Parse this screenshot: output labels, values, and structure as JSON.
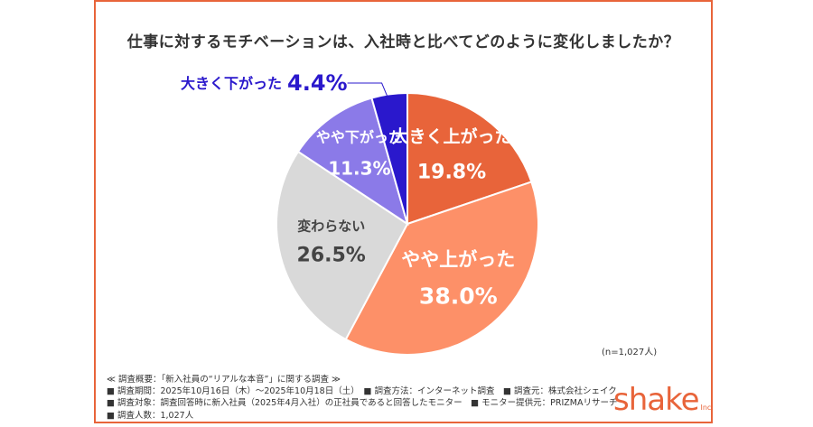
{
  "title": "仕事に対するモチベーションは、入社時と比べてどのように変化しましたか？",
  "chart_data": {
    "type": "pie",
    "title": "仕事に対するモチベーションは、入社時と比べてどのように変化しましたか？",
    "slices": [
      {
        "label": "大きく上がった",
        "value": 19.8,
        "display": "19.8%",
        "color": "#e8643a"
      },
      {
        "label": "やや上がった",
        "value": 38.0,
        "display": "38.0%",
        "color": "#fd9068"
      },
      {
        "label": "変わらない",
        "value": 26.5,
        "display": "26.5%",
        "color": "#d9d9d9"
      },
      {
        "label": "やや下がった",
        "value": 11.3,
        "display": "11.3%",
        "color": "#8b7ae8"
      },
      {
        "label": "大きく下がった",
        "value": 4.4,
        "display": "4.4%",
        "color": "#2a18cc"
      }
    ],
    "n_label": "(n=1,027人)"
  },
  "notes": [
    "≪ 調査概要：「新入社員の“リアルな本音”」に関する調査 ≫",
    "■ 調査期間：2025年10月16日（木）〜2025年10月18日（土）　■ 調査方法：インターネット調査　■ 調査元：株式会社シェイク",
    "■ 調査対象：調査回答時に新入社員（2025年4月入社）の正社員であると回答したモニター　■ モニター提供元：PRIZMAリサーチ",
    "■ 調査人数：1,027人"
  ],
  "logo": {
    "text": "shake",
    "sub": "Inc."
  }
}
